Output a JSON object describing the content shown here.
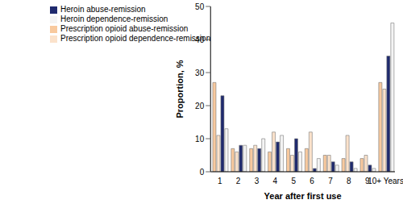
{
  "chart_data": {
    "type": "bar",
    "x_label": "Year after first use",
    "y_label": "Proportion, %",
    "categories": [
      "1",
      "2",
      "3",
      "4",
      "5",
      "6",
      "7",
      "8",
      "9",
      "10+ Years"
    ],
    "series": [
      {
        "name": "Prescription opioid abuse-remission",
        "color": "#f8c99e",
        "values": [
          27,
          7,
          7,
          6,
          7,
          7,
          5,
          4,
          4,
          27
        ]
      },
      {
        "name": "Prescription opioid dependence-remission",
        "color": "#fbe2cb",
        "values": [
          11,
          6,
          8,
          12,
          5,
          12,
          5,
          11,
          5,
          25
        ]
      },
      {
        "name": "Heroin abuse-remission",
        "color": "#1f2a6e",
        "values": [
          23,
          8,
          7,
          9,
          10,
          1,
          3,
          3,
          2,
          35
        ]
      },
      {
        "name": "Heroin dependence-remission",
        "color": "#f4f4f4",
        "values": [
          13,
          8,
          10,
          11,
          6,
          4,
          2,
          1,
          1,
          45
        ]
      }
    ],
    "ylim": [
      0,
      50
    ],
    "yticks": [
      0,
      10,
      20,
      30,
      40,
      50
    ],
    "grid": false,
    "legend": "upper left"
  }
}
